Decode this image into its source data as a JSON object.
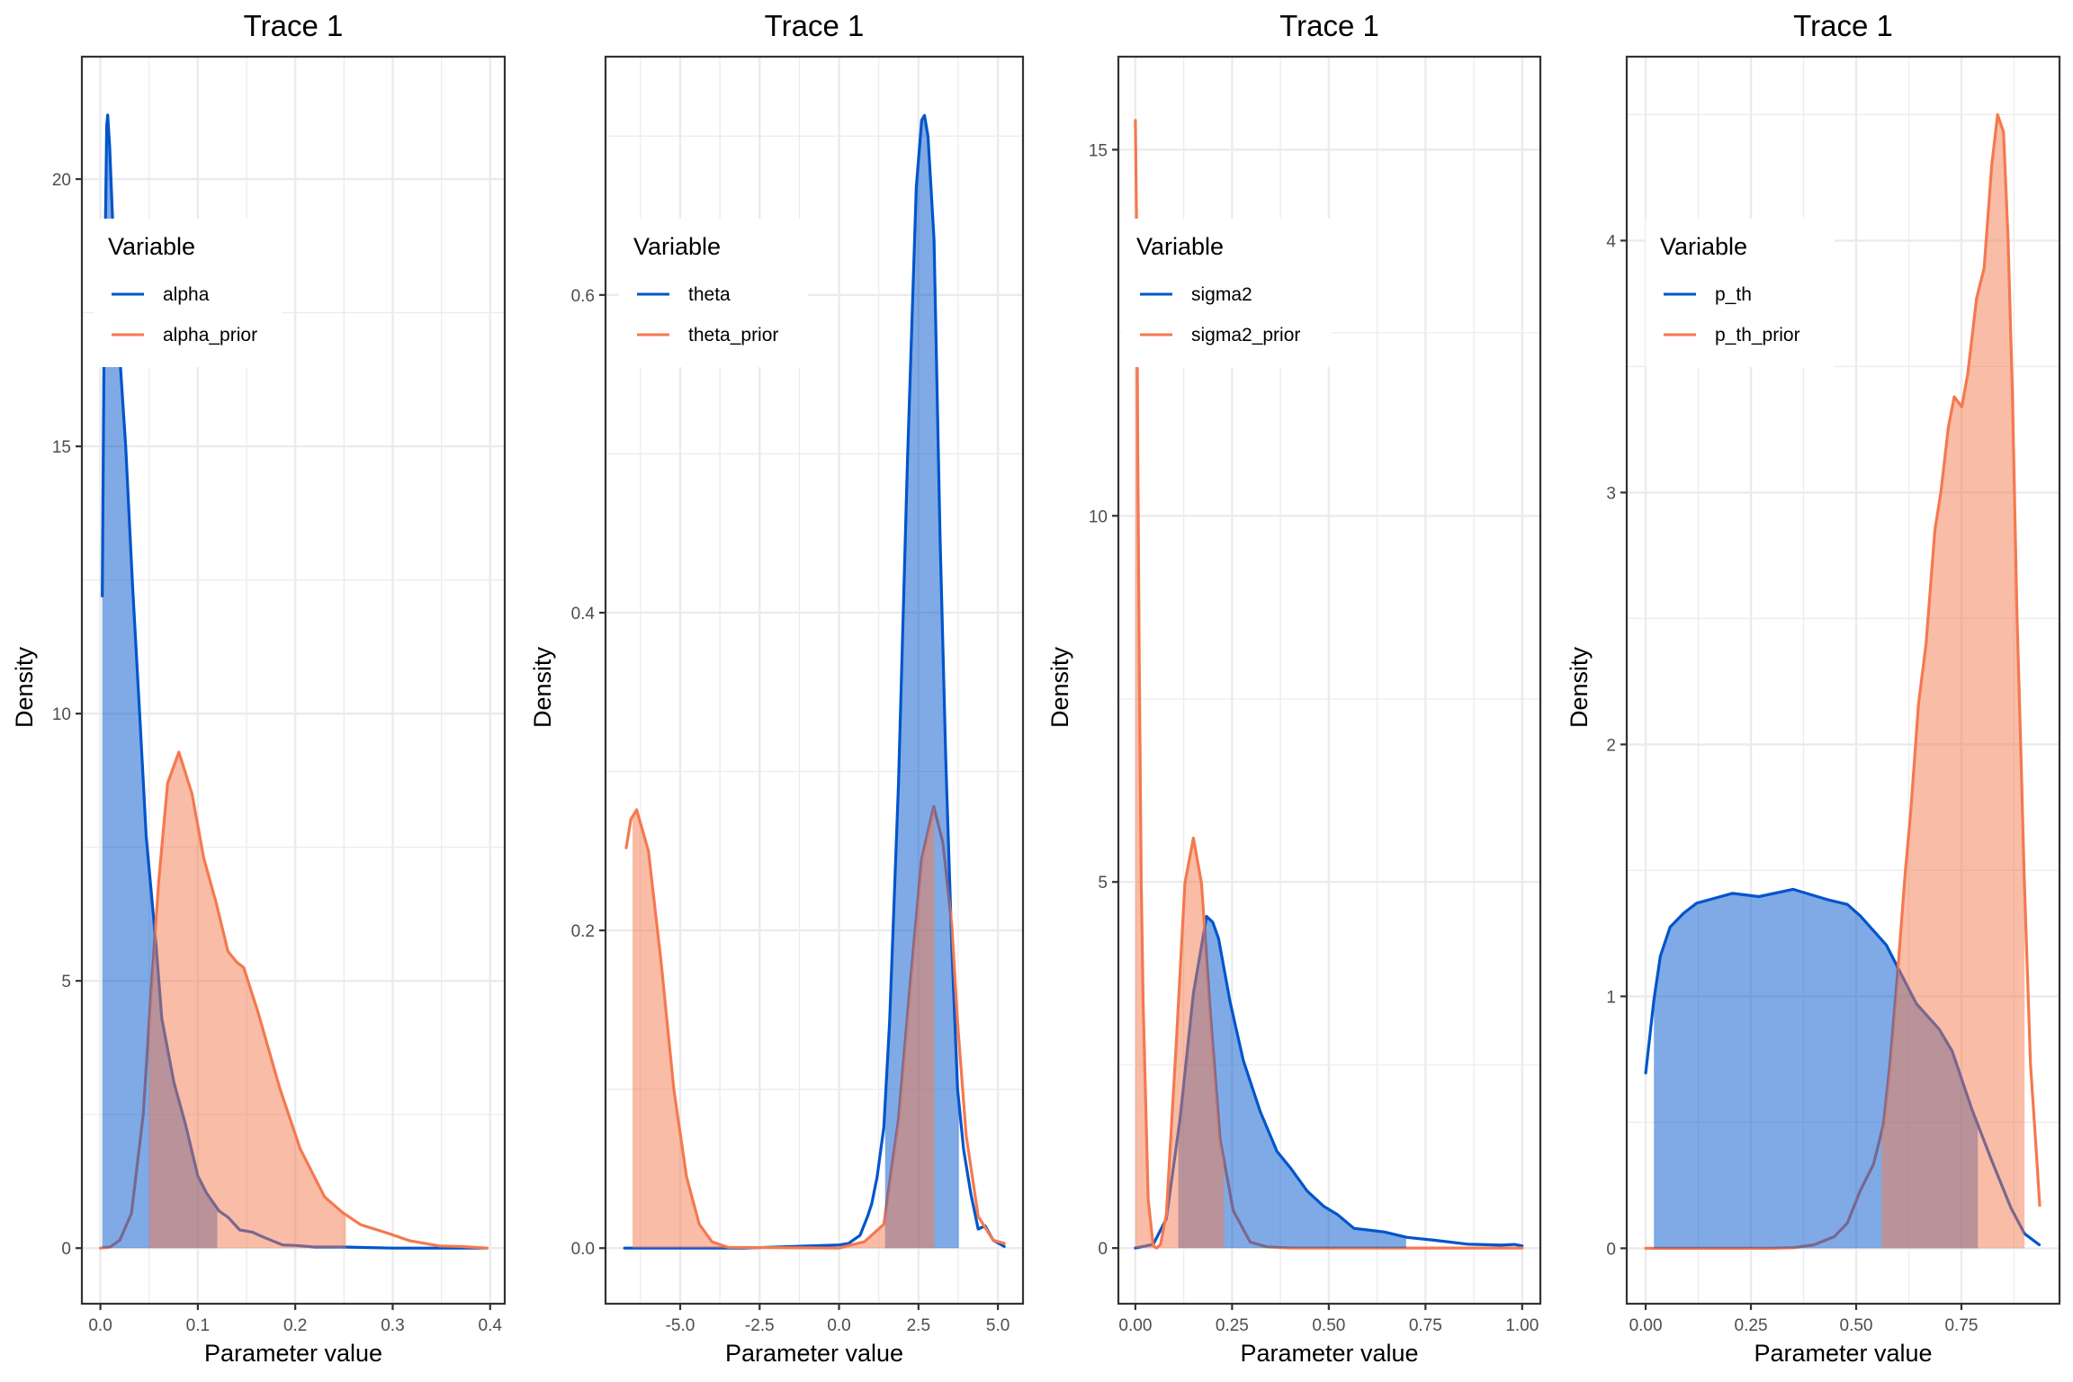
{
  "chart_data": [
    {
      "type": "area",
      "title": "Trace 1",
      "xlabel": "Parameter value",
      "ylabel": "Density",
      "xlim": [
        -0.019,
        0.415
      ],
      "ylim": [
        -1.04,
        22.29
      ],
      "xticks": [
        0.0,
        0.1,
        0.2,
        0.3,
        0.4
      ],
      "xtick_labels": [
        "0.0",
        "0.1",
        "0.2",
        "0.3",
        "0.4"
      ],
      "yticks": [
        0,
        5,
        10,
        15,
        20
      ],
      "ytick_labels": [
        "0",
        "5",
        "10",
        "15",
        "20"
      ],
      "grid": true,
      "legend": {
        "title": "Variable",
        "placement": "top-left"
      },
      "series": [
        {
          "name": "alpha",
          "color": "#0055CC",
          "fill_range": [
            0.002,
            0.12
          ],
          "points": [
            [
              0.002,
              12.2
            ],
            [
              0.004,
              17.5
            ],
            [
              0.0065,
              21.0
            ],
            [
              0.0075,
              21.2
            ],
            [
              0.0095,
              20.6
            ],
            [
              0.013,
              19
            ],
            [
              0.018,
              17.2
            ],
            [
              0.026,
              15
            ],
            [
              0.033,
              12.4
            ],
            [
              0.04,
              10.1
            ],
            [
              0.047,
              7.7
            ],
            [
              0.057,
              5.7
            ],
            [
              0.063,
              4.3
            ],
            [
              0.0755,
              3.1
            ],
            [
              0.0876,
              2.3
            ],
            [
              0.1,
              1.35
            ],
            [
              0.109,
              1.03
            ],
            [
              0.122,
              0.69
            ],
            [
              0.131,
              0.58
            ],
            [
              0.143,
              0.34
            ],
            [
              0.156,
              0.3
            ],
            [
              0.168,
              0.2
            ],
            [
              0.187,
              0.06
            ],
            [
              0.2,
              0.05
            ],
            [
              0.22,
              0.02
            ],
            [
              0.25,
              0.02
            ],
            [
              0.3,
              0.0
            ],
            [
              0.395,
              0.0
            ]
          ]
        },
        {
          "name": "alpha_prior",
          "color": "#F4794F",
          "fill_range": [
            0.05,
            0.252
          ],
          "points": [
            [
              0.0,
              0
            ],
            [
              0.01,
              0.02
            ],
            [
              0.02,
              0.15
            ],
            [
              0.0319,
              0.65
            ],
            [
              0.044,
              2.5
            ],
            [
              0.052,
              4.8
            ],
            [
              0.06,
              6.9
            ],
            [
              0.069,
              8.7
            ],
            [
              0.0805,
              9.28
            ],
            [
              0.094,
              8.5
            ],
            [
              0.106,
              7.3
            ],
            [
              0.119,
              6.45
            ],
            [
              0.131,
              5.55
            ],
            [
              0.14,
              5.35
            ],
            [
              0.147,
              5.25
            ],
            [
              0.162,
              4.4
            ],
            [
              0.184,
              3.0
            ],
            [
              0.205,
              1.86
            ],
            [
              0.23,
              0.96
            ],
            [
              0.249,
              0.66
            ],
            [
              0.267,
              0.44
            ],
            [
              0.295,
              0.28
            ],
            [
              0.317,
              0.14
            ],
            [
              0.348,
              0.04
            ],
            [
              0.37,
              0.03
            ],
            [
              0.397,
              0.0
            ]
          ]
        }
      ]
    },
    {
      "type": "area",
      "title": "Trace 1",
      "xlabel": "Parameter value",
      "ylabel": "Density",
      "xlim": [
        -7.35,
        5.79
      ],
      "ylim": [
        -0.035,
        0.75
      ],
      "xticks": [
        -5.0,
        -2.5,
        0.0,
        2.5,
        5.0
      ],
      "xtick_labels": [
        "-5.0",
        "-2.5",
        "0.0",
        "2.5",
        "5.0"
      ],
      "yticks": [
        0.0,
        0.2,
        0.4,
        0.6
      ],
      "ytick_labels": [
        "0.0",
        "0.2",
        "0.4",
        "0.6"
      ],
      "grid": true,
      "legend": {
        "title": "Variable",
        "placement": "top-left"
      },
      "series": [
        {
          "name": "theta",
          "color": "#0055CC",
          "fill_range": [
            1.45,
            3.77
          ],
          "points": [
            [
              -6.75,
              0
            ],
            [
              -3,
              0
            ],
            [
              0,
              0.002
            ],
            [
              0.3,
              0.003
            ],
            [
              0.66,
              0.008
            ],
            [
              0.9,
              0.02
            ],
            [
              1.03,
              0.028
            ],
            [
              1.2,
              0.045
            ],
            [
              1.41,
              0.076
            ],
            [
              1.59,
              0.142
            ],
            [
              1.87,
              0.292
            ],
            [
              2.15,
              0.494
            ],
            [
              2.43,
              0.668
            ],
            [
              2.6,
              0.71
            ],
            [
              2.69,
              0.713
            ],
            [
              2.8,
              0.7
            ],
            [
              2.99,
              0.635
            ],
            [
              3.18,
              0.448
            ],
            [
              3.36,
              0.307
            ],
            [
              3.55,
              0.189
            ],
            [
              3.73,
              0.1
            ],
            [
              3.92,
              0.062
            ],
            [
              4.15,
              0.034
            ],
            [
              4.38,
              0.012
            ],
            [
              4.6,
              0.014
            ],
            [
              4.85,
              0.005
            ],
            [
              5.2,
              0.001
            ]
          ]
        },
        {
          "name": "theta_prior",
          "color": "#F4794F",
          "fill_range": [
            -6.5,
            3.0
          ],
          "points": [
            [
              -6.7,
              0.252
            ],
            [
              -6.55,
              0.27
            ],
            [
              -6.37,
              0.276
            ],
            [
              -6.0,
              0.25
            ],
            [
              -5.6,
              0.18
            ],
            [
              -5.2,
              0.1
            ],
            [
              -4.8,
              0.045
            ],
            [
              -4.4,
              0.015
            ],
            [
              -4.0,
              0.004
            ],
            [
              -3.5,
              0.0005
            ],
            [
              0,
              0
            ],
            [
              0.8,
              0.004
            ],
            [
              1.41,
              0.015
            ],
            [
              1.87,
              0.081
            ],
            [
              2.24,
              0.166
            ],
            [
              2.6,
              0.245
            ],
            [
              2.98,
              0.278
            ],
            [
              3.27,
              0.255
            ],
            [
              3.55,
              0.203
            ],
            [
              3.73,
              0.142
            ],
            [
              4.0,
              0.071
            ],
            [
              4.38,
              0.02
            ],
            [
              4.85,
              0.005
            ],
            [
              5.2,
              0.003
            ]
          ]
        }
      ]
    },
    {
      "type": "area",
      "title": "Trace 1",
      "xlabel": "Parameter value",
      "ylabel": "Density",
      "xlim": [
        -0.044,
        1.047
      ],
      "ylim": [
        -0.76,
        16.27
      ],
      "xticks": [
        0.0,
        0.25,
        0.5,
        0.75,
        1.0
      ],
      "xtick_labels": [
        "0.00",
        "0.25",
        "0.50",
        "0.75",
        "1.00"
      ],
      "yticks": [
        0,
        5,
        10,
        15
      ],
      "ytick_labels": [
        "0",
        "5",
        "10",
        "15"
      ],
      "grid": true,
      "legend": {
        "title": "Variable",
        "placement": "top-left"
      },
      "series": [
        {
          "name": "sigma2",
          "color": "#0055CC",
          "fill_range": [
            0.111,
            0.7
          ],
          "points": [
            [
              0,
              0
            ],
            [
              0.046,
              0.05
            ],
            [
              0.08,
              0.4
            ],
            [
              0.115,
              1.75
            ],
            [
              0.15,
              3.48
            ],
            [
              0.184,
              4.53
            ],
            [
              0.2,
              4.45
            ],
            [
              0.215,
              4.23
            ],
            [
              0.245,
              3.36
            ],
            [
              0.279,
              2.56
            ],
            [
              0.323,
              1.86
            ],
            [
              0.366,
              1.32
            ],
            [
              0.4,
              1.1
            ],
            [
              0.444,
              0.78
            ],
            [
              0.487,
              0.57
            ],
            [
              0.522,
              0.46
            ],
            [
              0.565,
              0.27
            ],
            [
              0.643,
              0.22
            ],
            [
              0.703,
              0.145
            ],
            [
              0.772,
              0.108
            ],
            [
              0.859,
              0.054
            ],
            [
              0.946,
              0.04
            ],
            [
              0.98,
              0.05
            ],
            [
              1.0,
              0.03
            ]
          ]
        },
        {
          "name": "sigma2_prior",
          "color": "#F4794F",
          "fill_range": [
            0.0,
            0.229
          ],
          "points": [
            [
              0,
              15.4
            ],
            [
              0.003,
              14
            ],
            [
              0.006,
              11
            ],
            [
              0.01,
              8
            ],
            [
              0.015,
              5
            ],
            [
              0.02,
              3.37
            ],
            [
              0.033,
              0.67
            ],
            [
              0.046,
              0.03
            ],
            [
              0.055,
              0
            ],
            [
              0.065,
              0.05
            ],
            [
              0.08,
              0.46
            ],
            [
              0.106,
              2.83
            ],
            [
              0.128,
              4.98
            ],
            [
              0.15,
              5.6
            ],
            [
              0.171,
              4.98
            ],
            [
              0.193,
              3.26
            ],
            [
              0.219,
              1.48
            ],
            [
              0.253,
              0.51
            ],
            [
              0.297,
              0.08
            ],
            [
              0.34,
              0.016
            ],
            [
              0.4,
              0
            ],
            [
              1.0,
              0
            ]
          ]
        }
      ]
    },
    {
      "type": "area",
      "title": "Trace 1",
      "xlabel": "Parameter value",
      "ylabel": "Density",
      "xlim": [
        -0.045,
        0.983
      ],
      "ylim": [
        -0.22,
        4.73
      ],
      "xticks": [
        0.0,
        0.25,
        0.5,
        0.75
      ],
      "xtick_labels": [
        "0.00",
        "0.25",
        "0.50",
        "0.75"
      ],
      "yticks": [
        0,
        1,
        2,
        3,
        4
      ],
      "ytick_labels": [
        "0",
        "1",
        "2",
        "3",
        "4"
      ],
      "grid": true,
      "legend": {
        "title": "Variable",
        "placement": "top-left"
      },
      "series": [
        {
          "name": "p_th",
          "color": "#0055CC",
          "fill_range": [
            0.0195,
            0.789
          ],
          "points": [
            [
              0,
              0.696
            ],
            [
              0.0195,
              0.986
            ],
            [
              0.035,
              1.16
            ],
            [
              0.058,
              1.275
            ],
            [
              0.09,
              1.33
            ],
            [
              0.121,
              1.37
            ],
            [
              0.206,
              1.409
            ],
            [
              0.269,
              1.396
            ],
            [
              0.35,
              1.425
            ],
            [
              0.432,
              1.384
            ],
            [
              0.479,
              1.365
            ],
            [
              0.51,
              1.319
            ],
            [
              0.572,
              1.203
            ],
            [
              0.603,
              1.101
            ],
            [
              0.643,
              0.971
            ],
            [
              0.697,
              0.87
            ],
            [
              0.728,
              0.783
            ],
            [
              0.775,
              0.551
            ],
            [
              0.822,
              0.348
            ],
            [
              0.868,
              0.159
            ],
            [
              0.9,
              0.058
            ],
            [
              0.935,
              0.014
            ]
          ]
        },
        {
          "name": "p_th_prior",
          "color": "#F4794F",
          "fill_range": [
            0.561,
            0.9
          ],
          "points": [
            [
              0,
              0
            ],
            [
              0.3,
              0
            ],
            [
              0.354,
              0.003
            ],
            [
              0.4,
              0.014
            ],
            [
              0.448,
              0.046
            ],
            [
              0.479,
              0.1
            ],
            [
              0.51,
              0.23
            ],
            [
              0.541,
              0.333
            ],
            [
              0.565,
              0.493
            ],
            [
              0.58,
              0.725
            ],
            [
              0.596,
              1.04
            ],
            [
              0.602,
              1.17
            ],
            [
              0.616,
              1.48
            ],
            [
              0.63,
              1.74
            ],
            [
              0.648,
              2.16
            ],
            [
              0.666,
              2.4
            ],
            [
              0.687,
              2.85
            ],
            [
              0.701,
              3.0
            ],
            [
              0.719,
              3.26
            ],
            [
              0.733,
              3.38
            ],
            [
              0.751,
              3.34
            ],
            [
              0.765,
              3.47
            ],
            [
              0.786,
              3.77
            ],
            [
              0.804,
              3.89
            ],
            [
              0.822,
              4.3
            ],
            [
              0.836,
              4.5
            ],
            [
              0.85,
              4.43
            ],
            [
              0.861,
              4.0
            ],
            [
              0.871,
              3.4
            ],
            [
              0.882,
              2.52
            ],
            [
              0.892,
              1.93
            ],
            [
              0.899,
              1.48
            ],
            [
              0.914,
              0.735
            ],
            [
              0.928,
              0.378
            ],
            [
              0.936,
              0.17
            ]
          ]
        }
      ]
    }
  ]
}
